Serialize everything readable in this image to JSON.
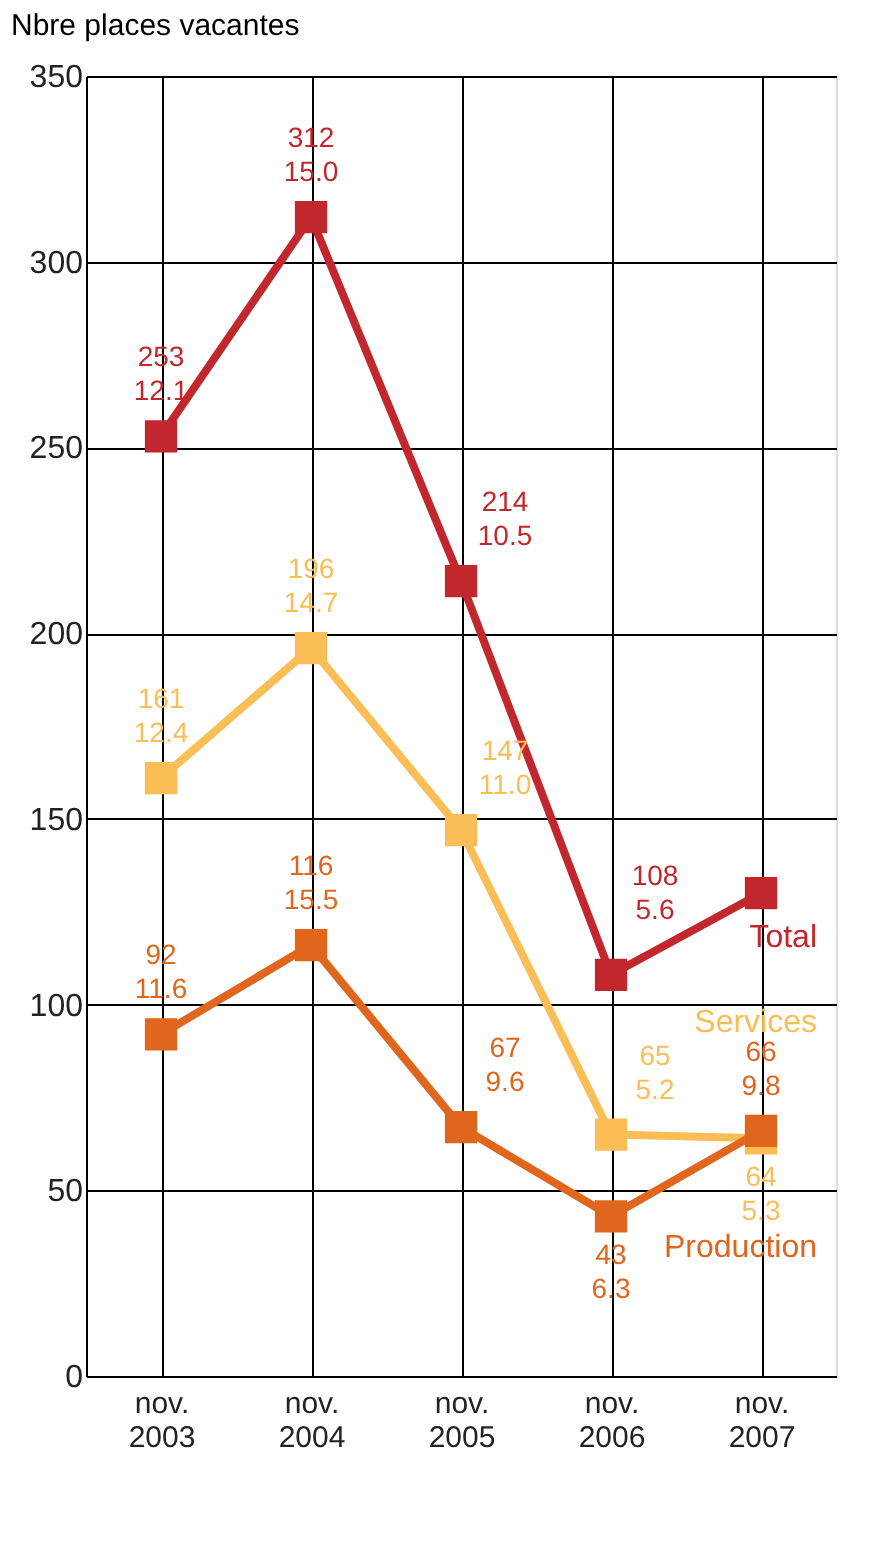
{
  "chart_data": {
    "type": "line",
    "ylabel": "Nbre places vacantes",
    "categories": [
      "nov. 2003",
      "nov. 2004",
      "nov. 2005",
      "nov. 2006",
      "nov. 2007"
    ],
    "series": [
      {
        "name": "Total",
        "color": "#c1272d",
        "values": [
          253,
          312,
          214,
          108,
          130
        ],
        "value_labels": [
          "253\n12.1",
          "312\n15.0",
          "214\n10.5",
          "108\n5.6",
          null
        ]
      },
      {
        "name": "Services",
        "color": "#fbbd55",
        "values": [
          161,
          196,
          147,
          65,
          64
        ],
        "value_labels": [
          "161\n12.4",
          "196\n14.7",
          "147\n11.0",
          "65\n5.2",
          "64\n5.3"
        ]
      },
      {
        "name": "Production",
        "color": "#e0661e",
        "values": [
          92,
          116,
          67,
          43,
          66
        ],
        "value_labels": [
          "92\n11.6",
          "116\n15.5",
          "67\n9.6",
          "43\n6.3",
          "66\n9.8"
        ]
      }
    ],
    "ylim": [
      0,
      350
    ],
    "yticks": [
      0,
      50,
      100,
      150,
      200,
      250,
      300,
      350
    ],
    "grid": true,
    "marker": "square",
    "line_style": "solid",
    "legend": false
  }
}
